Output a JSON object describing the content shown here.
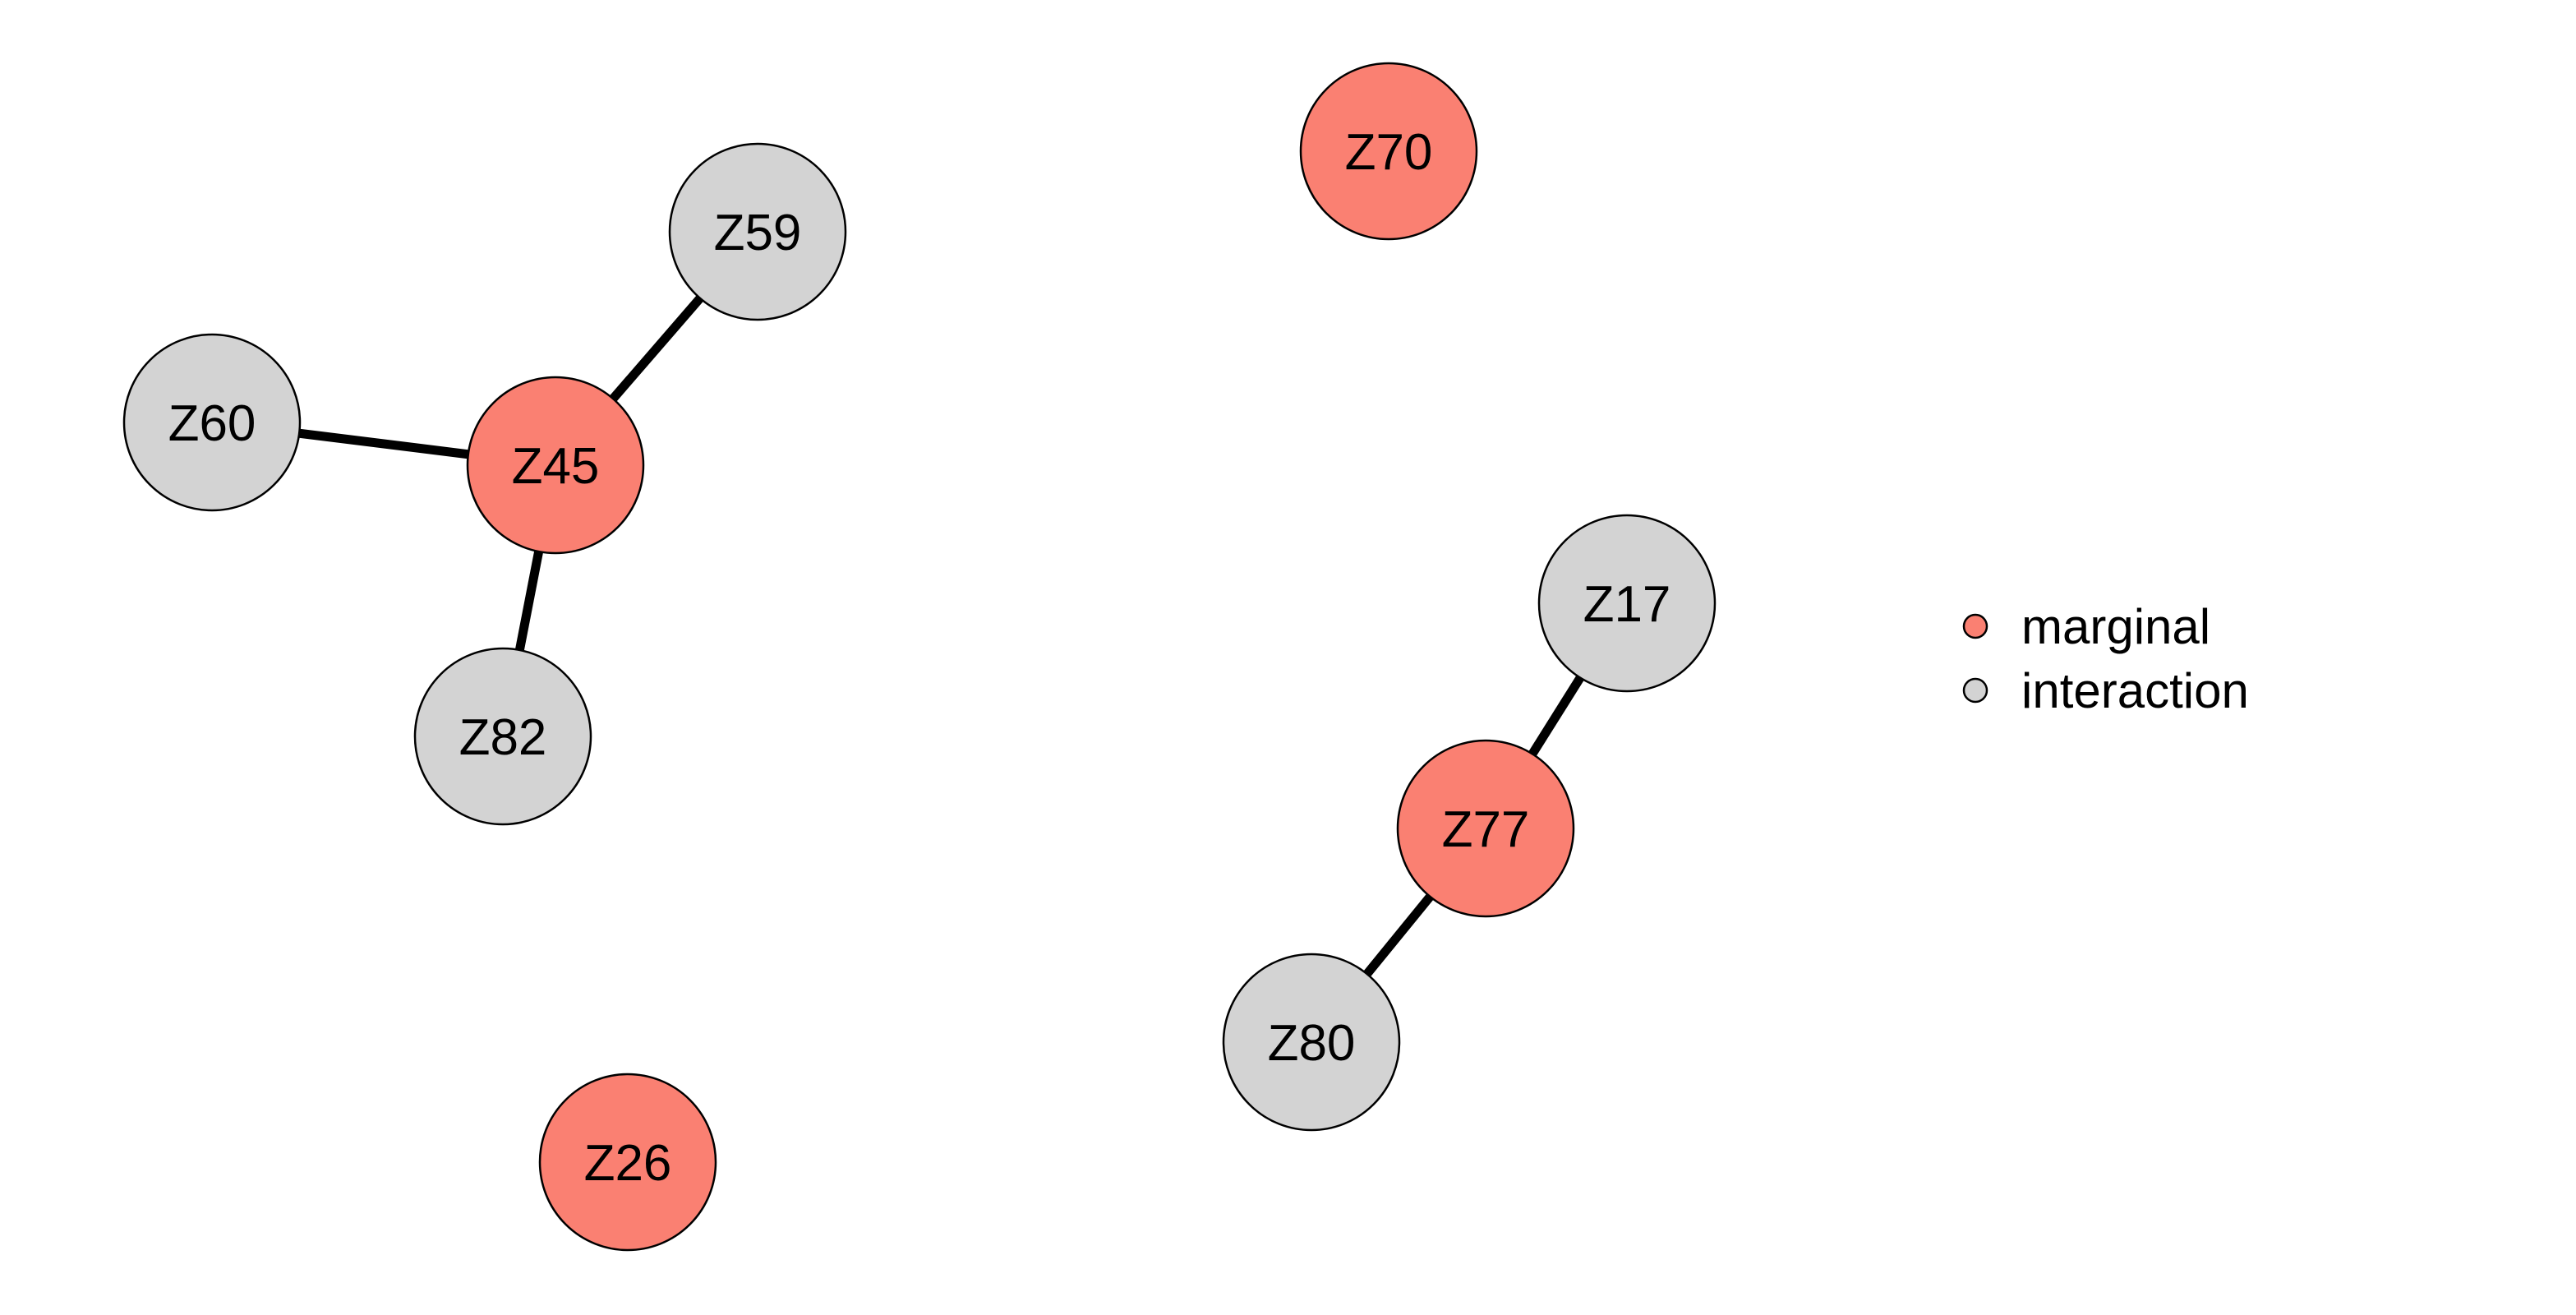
{
  "colors": {
    "marginal": "#FA8072",
    "interaction": "#D3D3D3"
  },
  "legend": {
    "items": [
      {
        "label": "marginal",
        "group": "marginal"
      },
      {
        "label": "interaction",
        "group": "interaction"
      }
    ]
  },
  "nodes": [
    {
      "id": "Z70",
      "label": "Z70",
      "group": "marginal"
    },
    {
      "id": "Z59",
      "label": "Z59",
      "group": "interaction"
    },
    {
      "id": "Z60",
      "label": "Z60",
      "group": "interaction"
    },
    {
      "id": "Z45",
      "label": "Z45",
      "group": "marginal"
    },
    {
      "id": "Z82",
      "label": "Z82",
      "group": "interaction"
    },
    {
      "id": "Z17",
      "label": "Z17",
      "group": "interaction"
    },
    {
      "id": "Z77",
      "label": "Z77",
      "group": "marginal"
    },
    {
      "id": "Z80",
      "label": "Z80",
      "group": "interaction"
    },
    {
      "id": "Z26",
      "label": "Z26",
      "group": "marginal"
    }
  ],
  "edges": [
    {
      "source": "Z45",
      "target": "Z59"
    },
    {
      "source": "Z45",
      "target": "Z60"
    },
    {
      "source": "Z45",
      "target": "Z82"
    },
    {
      "source": "Z77",
      "target": "Z17"
    },
    {
      "source": "Z77",
      "target": "Z80"
    }
  ]
}
